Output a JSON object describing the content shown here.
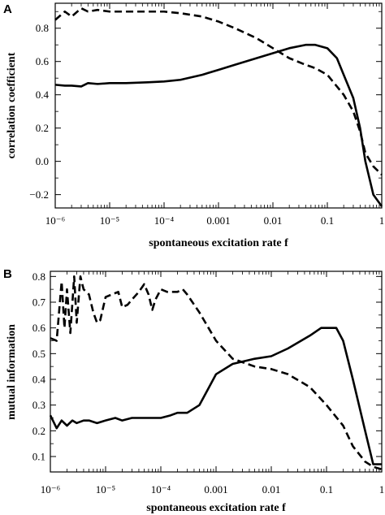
{
  "chart_data": [
    {
      "panel_label": "A",
      "type": "line",
      "xlabel": "spontaneous excitation rate f",
      "ylabel": "correlation coefficient",
      "xscale": "log",
      "xlim": [
        1e-06,
        1
      ],
      "ylim": [
        -0.28,
        0.95
      ],
      "xtick_values": [
        1e-06,
        1e-05,
        0.0001,
        0.001,
        0.01,
        0.1,
        1
      ],
      "xtick_labels": [
        "10⁻⁶",
        "10⁻⁵",
        "10⁻⁴",
        "0.001",
        "0.01",
        "0.1",
        "1"
      ],
      "ytick_values": [
        -0.2,
        0,
        0.2,
        0.4,
        0.6,
        0.8
      ],
      "ytick_labels": [
        "−0.2",
        "0.0",
        "0.2",
        "0.4",
        "0.6",
        "0.8"
      ],
      "grid": false,
      "legend": "none",
      "series": [
        {
          "style": "solid",
          "x": [
            1e-06,
            1.5e-06,
            2e-06,
            3e-06,
            4e-06,
            6e-06,
            1e-05,
            2e-05,
            5e-05,
            0.0001,
            0.0002,
            0.0005,
            0.001,
            0.002,
            0.005,
            0.01,
            0.02,
            0.04,
            0.06,
            0.1,
            0.15,
            0.2,
            0.3,
            0.4,
            0.5,
            0.7,
            1.0
          ],
          "y": [
            0.46,
            0.455,
            0.455,
            0.45,
            0.47,
            0.465,
            0.47,
            0.47,
            0.475,
            0.48,
            0.49,
            0.52,
            0.55,
            0.58,
            0.62,
            0.65,
            0.68,
            0.7,
            0.7,
            0.68,
            0.62,
            0.52,
            0.38,
            0.2,
            0.0,
            -0.2,
            -0.27
          ]
        },
        {
          "style": "dashed",
          "x": [
            1e-06,
            1.5e-06,
            2e-06,
            3e-06,
            4e-06,
            6e-06,
            1e-05,
            2e-05,
            5e-05,
            0.0001,
            0.0002,
            0.0005,
            0.001,
            0.002,
            0.005,
            0.01,
            0.02,
            0.04,
            0.06,
            0.1,
            0.15,
            0.2,
            0.3,
            0.4,
            0.5,
            0.7,
            1.0
          ],
          "y": [
            0.85,
            0.9,
            0.87,
            0.92,
            0.9,
            0.91,
            0.9,
            0.9,
            0.9,
            0.9,
            0.89,
            0.87,
            0.84,
            0.8,
            0.74,
            0.68,
            0.62,
            0.58,
            0.56,
            0.52,
            0.45,
            0.4,
            0.3,
            0.18,
            0.05,
            -0.03,
            -0.08
          ]
        }
      ]
    },
    {
      "panel_label": "B",
      "type": "line",
      "xlabel": "spontaneous excitation rate f",
      "ylabel": "mutual information",
      "xscale": "log",
      "xlim": [
        1e-06,
        1
      ],
      "ylim": [
        0.04,
        0.82
      ],
      "xtick_values": [
        1e-06,
        1e-05,
        0.0001,
        0.001,
        0.01,
        0.1,
        1
      ],
      "xtick_labels": [
        "10⁻⁶",
        "10⁻⁵",
        "10⁻⁴",
        "0.001",
        "0.01",
        "0.1",
        "1"
      ],
      "ytick_values": [
        0.1,
        0.2,
        0.3,
        0.4,
        0.5,
        0.6,
        0.7,
        0.8
      ],
      "ytick_labels": [
        "0.1",
        "0.2",
        "0.3",
        "0.4",
        "0.5",
        "0.6",
        "0.7",
        "0.8"
      ],
      "grid": false,
      "legend": "none",
      "series": [
        {
          "style": "solid",
          "x": [
            1e-06,
            1.3e-06,
            1.6e-06,
            2e-06,
            2.5e-06,
            3e-06,
            4e-06,
            5e-06,
            7e-06,
            1e-05,
            1.5e-05,
            2e-05,
            3e-05,
            5e-05,
            7e-05,
            0.0001,
            0.00015,
            0.0002,
            0.0003,
            0.0005,
            0.001,
            0.002,
            0.005,
            0.01,
            0.02,
            0.05,
            0.08,
            0.1,
            0.15,
            0.2,
            0.3,
            0.5,
            0.7,
            1.0
          ],
          "y": [
            0.26,
            0.21,
            0.24,
            0.22,
            0.24,
            0.23,
            0.24,
            0.24,
            0.23,
            0.24,
            0.25,
            0.24,
            0.25,
            0.25,
            0.25,
            0.25,
            0.26,
            0.27,
            0.27,
            0.3,
            0.42,
            0.46,
            0.48,
            0.49,
            0.52,
            0.57,
            0.6,
            0.6,
            0.6,
            0.55,
            0.4,
            0.2,
            0.07,
            0.07
          ]
        },
        {
          "style": "dashed",
          "x": [
            1e-06,
            1.3e-06,
            1.6e-06,
            1.8e-06,
            2e-06,
            2.3e-06,
            2.7e-06,
            3e-06,
            3.5e-06,
            4e-06,
            5e-06,
            6e-06,
            7e-06,
            8e-06,
            1e-05,
            1.3e-05,
            1.7e-05,
            2e-05,
            2.5e-05,
            3e-05,
            4e-05,
            5e-05,
            6e-05,
            7e-05,
            8e-05,
            0.0001,
            0.00013,
            0.00016,
            0.0002,
            0.00025,
            0.0003,
            0.0005,
            0.001,
            0.002,
            0.005,
            0.01,
            0.02,
            0.05,
            0.1,
            0.2,
            0.3,
            0.5,
            0.7,
            1.0
          ],
          "y": [
            0.56,
            0.55,
            0.78,
            0.6,
            0.75,
            0.58,
            0.8,
            0.62,
            0.8,
            0.75,
            0.73,
            0.66,
            0.62,
            0.63,
            0.72,
            0.73,
            0.74,
            0.68,
            0.69,
            0.71,
            0.74,
            0.77,
            0.73,
            0.67,
            0.71,
            0.75,
            0.74,
            0.74,
            0.74,
            0.75,
            0.73,
            0.66,
            0.55,
            0.48,
            0.45,
            0.44,
            0.42,
            0.37,
            0.3,
            0.22,
            0.14,
            0.08,
            0.06,
            0.05
          ]
        }
      ]
    }
  ]
}
